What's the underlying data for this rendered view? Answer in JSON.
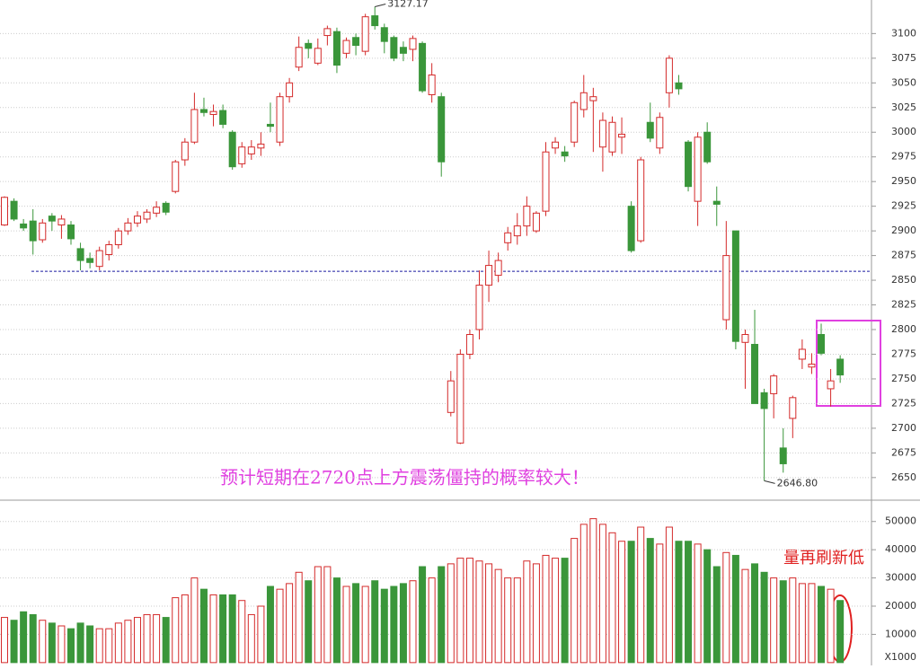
{
  "chart_data": {
    "type": "candlestick",
    "open": [
      2906,
      2930,
      2907,
      2910,
      2891,
      2915,
      2906,
      2906,
      2882,
      2872,
      2864,
      2876,
      2886,
      2900,
      2908,
      2912,
      2918,
      2928,
      2940,
      2972,
      2990,
      3023,
      3018,
      3022,
      3000,
      2968,
      2978,
      2984,
      3008,
      2990,
      3036,
      3066,
      3090,
      3070,
      3098,
      3102,
      3080,
      3096,
      3082,
      3118,
      3106,
      3096,
      3086,
      3084,
      3090,
      3038,
      3036,
      2716,
      2685,
      2775,
      2800,
      2845,
      2855,
      2888,
      2895,
      2905,
      2900,
      2920,
      2984,
      2980,
      2990,
      3023,
      3032,
      2985,
      2980,
      2995,
      2925,
      2890,
      3010,
      2984,
      3040,
      3050,
      2990,
      2930,
      3000,
      2930,
      2810,
      2900,
      2787,
      2785,
      2736,
      2735,
      2680,
      2710,
      2770,
      2762,
      2795,
      2740,
      2770
    ],
    "high": [
      2935,
      2933,
      2912,
      2922,
      2912,
      2918,
      2916,
      2910,
      2888,
      2878,
      2884,
      2890,
      2903,
      2913,
      2920,
      2922,
      2930,
      2930,
      2972,
      2994,
      3040,
      3035,
      3028,
      3028,
      3002,
      2990,
      2992,
      3000,
      3030,
      3040,
      3055,
      3097,
      3094,
      3095,
      3108,
      3106,
      3096,
      3100,
      3120,
      3127.17,
      3110,
      3098,
      3092,
      3098,
      3092,
      3070,
      3040,
      2758,
      2780,
      2800,
      2860,
      2880,
      2878,
      2904,
      2918,
      2935,
      2920,
      2990,
      2995,
      2986,
      3032,
      3058,
      3045,
      3020,
      3016,
      3015,
      2930,
      2975,
      3030,
      3020,
      3078,
      3058,
      2992,
      3000,
      3010,
      2945,
      2910,
      2900,
      2800,
      2820,
      2740,
      2755,
      2700,
      2733,
      2790,
      2776,
      2806,
      2760,
      2774
    ],
    "low": [
      2905,
      2910,
      2900,
      2876,
      2888,
      2900,
      2892,
      2886,
      2860,
      2862,
      2860,
      2870,
      2882,
      2896,
      2904,
      2908,
      2914,
      2916,
      2938,
      2966,
      2988,
      3016,
      3006,
      3004,
      2962,
      2964,
      2972,
      2976,
      3000,
      2986,
      3030,
      3062,
      3075,
      3068,
      3088,
      3060,
      3075,
      3078,
      3078,
      3104,
      3080,
      3072,
      3072,
      3072,
      3040,
      3030,
      2955,
      2712,
      2684,
      2770,
      2790,
      2828,
      2848,
      2880,
      2886,
      2895,
      2898,
      2915,
      2978,
      2970,
      2985,
      3015,
      2980,
      2960,
      2976,
      2978,
      2878,
      2888,
      2990,
      2978,
      3025,
      3038,
      2940,
      2905,
      2968,
      2905,
      2800,
      2780,
      2740,
      2725,
      2646.8,
      2710,
      2655,
      2690,
      2760,
      2755,
      2774,
      2722,
      2746
    ],
    "close": [
      2934,
      2912,
      2903,
      2890,
      2908,
      2910,
      2912,
      2892,
      2870,
      2868,
      2880,
      2886,
      2900,
      2908,
      2915,
      2919,
      2924,
      2919,
      2970,
      2990,
      3023,
      3020,
      3021,
      3008,
      2965,
      2985,
      2985,
      2988,
      3006,
      3036,
      3050,
      3086,
      3085,
      3085,
      3105,
      3068,
      3093,
      3088,
      3117,
      3108,
      3092,
      3075,
      3080,
      3095,
      3042,
      3058,
      2970,
      2748,
      2775,
      2795,
      2845,
      2865,
      2870,
      2898,
      2905,
      2925,
      2918,
      2980,
      2990,
      2976,
      3030,
      3040,
      3036,
      3012,
      3010,
      2998,
      2880,
      2972,
      2994,
      3015,
      3075,
      3044,
      2945,
      2995,
      2970,
      2927,
      2875,
      2788,
      2795,
      2725,
      2720,
      2753,
      2664,
      2731,
      2780,
      2765,
      2776,
      2748,
      2754
    ],
    "volume": [
      16000,
      15000,
      18000,
      17000,
      15000,
      14000,
      13000,
      12000,
      14000,
      13000,
      12000,
      12000,
      14000,
      15000,
      16000,
      17000,
      17000,
      16000,
      23000,
      24000,
      30000,
      26000,
      24000,
      24000,
      24000,
      22000,
      17000,
      20000,
      27000,
      26000,
      28000,
      32000,
      29000,
      34000,
      34000,
      30000,
      27000,
      28000,
      27000,
      29000,
      26000,
      27000,
      28000,
      29000,
      34000,
      30000,
      34000,
      35000,
      37000,
      37000,
      36000,
      35000,
      33000,
      30000,
      30000,
      36000,
      35000,
      38000,
      37000,
      37000,
      44000,
      49000,
      51000,
      49000,
      46000,
      43000,
      43000,
      48000,
      44000,
      42000,
      48000,
      43000,
      43000,
      42000,
      40000,
      34000,
      39000,
      38000,
      33000,
      35000,
      32000,
      30000,
      29000,
      30000,
      28000,
      28000,
      27000,
      26000,
      22000
    ],
    "up_color": "#d42a2a",
    "down_color": "#3a963a",
    "ylim": [
      2628,
      3134
    ],
    "yticks": [
      2650,
      2675,
      2700,
      2725,
      2750,
      2775,
      2800,
      2825,
      2850,
      2875,
      2900,
      2925,
      2950,
      2975,
      3000,
      3025,
      3050,
      3075,
      3100
    ],
    "volume_ylim": [
      -1000,
      56600
    ],
    "volume_yticks": [
      10000,
      20000,
      30000,
      40000,
      50000
    ],
    "volume_unit": "X1000",
    "reference_line": 2859,
    "reference_color": "#1a1aa0",
    "max_label": "3127.17",
    "min_label": "2646.80",
    "annotation": "预计短期在2720点上方震荡僵持的概率较大！",
    "volume_annotation": "量再刷新低",
    "grid": true
  }
}
